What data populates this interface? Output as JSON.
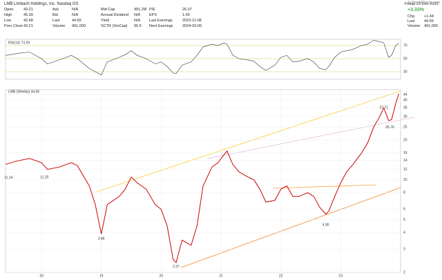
{
  "header": {
    "symbol": "LMB",
    "company": "Limbach Holdings, Inc. Nasdaq GS",
    "date": "Friday 22-Dec-2023",
    "change_pct": "+3.33%",
    "fields": [
      {
        "label": "Open",
        "value": "43.21"
      },
      {
        "label": "High",
        "value": "45.39"
      },
      {
        "label": "Low",
        "value": "42.48"
      },
      {
        "label": "Prev Close",
        "value": "43.21"
      },
      {
        "label": "Ask",
        "value": "N/A"
      },
      {
        "label": "Bid",
        "value": "N/A"
      },
      {
        "label": "Last",
        "value": "44.65"
      },
      {
        "label": "Volume",
        "value": "491,000"
      },
      {
        "label": "Mid Cap",
        "value": "491.2M"
      },
      {
        "label": "Annual Dividend",
        "value": "N/A"
      },
      {
        "label": "Yield",
        "value": "N/A"
      },
      {
        "label": "SCTR (SmCap)",
        "value": "96.5"
      },
      {
        "label": "P/E",
        "value": "26.37"
      },
      {
        "label": "EPS",
        "value": "1.69"
      },
      {
        "label": "Last Earnings",
        "value": "2023-11-08"
      },
      {
        "label": "Next Earnings",
        "value": "2024-03-06"
      }
    ],
    "quote": [
      {
        "label": "Chg",
        "value": "+1.44"
      },
      {
        "label": "Last",
        "value": "44.65"
      },
      {
        "label": "Volume",
        "value": "491,000"
      }
    ],
    "brand": "© StockCharts.com"
  },
  "chart_data": [
    {
      "type": "line",
      "label": "RSI(14) 73.59",
      "ylim": [
        20,
        80
      ],
      "yticks": [
        30,
        50,
        70
      ],
      "xlim": [
        2017.4,
        2024.0
      ],
      "x": [
        2017.4,
        2017.6,
        2017.8,
        2018.0,
        2018.1,
        2018.3,
        2018.5,
        2018.6,
        2018.8,
        2018.9,
        2019.0,
        2019.1,
        2019.3,
        2019.4,
        2019.5,
        2019.6,
        2019.75,
        2019.9,
        2020.0,
        2020.1,
        2020.2,
        2020.25,
        2020.35,
        2020.5,
        2020.6,
        2020.7,
        2020.85,
        2020.95,
        2021.05,
        2021.1,
        2021.2,
        2021.3,
        2021.45,
        2021.55,
        2021.65,
        2021.75,
        2021.9,
        2022.0,
        2022.1,
        2022.2,
        2022.3,
        2022.45,
        2022.55,
        2022.65,
        2022.75,
        2022.8,
        2022.9,
        2023.0,
        2023.1,
        2023.2,
        2023.35,
        2023.45,
        2023.55,
        2023.65,
        2023.72,
        2023.8,
        2023.85,
        2023.92,
        2023.97
      ],
      "series": [
        {
          "name": "RSI(14)",
          "color": "#333333",
          "values": [
            55,
            58,
            60,
            50,
            42,
            48,
            55,
            50,
            35,
            30,
            25,
            45,
            52,
            56,
            62,
            55,
            50,
            42,
            45,
            38,
            28,
            27,
            40,
            45,
            55,
            68,
            72,
            70,
            74,
            72,
            55,
            50,
            48,
            46,
            38,
            32,
            40,
            52,
            55,
            45,
            46,
            50,
            45,
            35,
            33,
            38,
            52,
            60,
            62,
            64,
            70,
            72,
            78,
            76,
            74,
            52,
            55,
            70,
            73.59
          ]
        }
      ]
    },
    {
      "type": "line",
      "label": "LMB (Weekly) 44.65",
      "log_scale": true,
      "ylim": [
        2,
        48
      ],
      "yticks": [
        2,
        3,
        4,
        5,
        6,
        8,
        10,
        12,
        14,
        16,
        20,
        25,
        30,
        35,
        40,
        44
      ],
      "xlim": [
        2017.4,
        2024.0
      ],
      "xticks": [
        {
          "value": 2018,
          "label": "18"
        },
        {
          "value": 2019,
          "label": "19"
        },
        {
          "value": 2020,
          "label": "20"
        },
        {
          "value": 2021,
          "label": "21"
        },
        {
          "value": 2022,
          "label": "22"
        },
        {
          "value": 2023,
          "label": "23"
        }
      ],
      "x": [
        2017.4,
        2017.6,
        2017.8,
        2018.0,
        2018.1,
        2018.3,
        2018.5,
        2018.6,
        2018.8,
        2018.9,
        2019.0,
        2019.1,
        2019.3,
        2019.4,
        2019.5,
        2019.6,
        2019.75,
        2019.9,
        2020.0,
        2020.1,
        2020.2,
        2020.25,
        2020.35,
        2020.5,
        2020.6,
        2020.7,
        2020.85,
        2020.95,
        2021.05,
        2021.1,
        2021.2,
        2021.3,
        2021.45,
        2021.55,
        2021.65,
        2021.75,
        2021.9,
        2022.0,
        2022.1,
        2022.2,
        2022.3,
        2022.45,
        2022.55,
        2022.65,
        2022.75,
        2022.8,
        2022.9,
        2023.0,
        2023.1,
        2023.2,
        2023.35,
        2023.45,
        2023.55,
        2023.65,
        2023.72,
        2023.8,
        2023.85,
        2023.92,
        2023.97
      ],
      "series": [
        {
          "name": "LMB",
          "color": "#cc0000",
          "values": [
            13.1,
            13.9,
            14.5,
            13.5,
            12.0,
            12.5,
            13.5,
            12.8,
            9,
            6.5,
            3.9,
            6.5,
            7.5,
            8.5,
            10.5,
            9.5,
            8.5,
            6.5,
            6,
            4.5,
            2.5,
            2.37,
            3.5,
            3.2,
            4.5,
            9,
            12.5,
            13.5,
            15.5,
            16.5,
            13,
            11.5,
            10.5,
            10,
            8.5,
            6.8,
            7,
            8.5,
            9,
            7.5,
            7.5,
            8,
            7.5,
            6.2,
            5.5,
            5.8,
            7.5,
            9.5,
            11.5,
            13,
            16,
            19,
            25,
            30,
            35,
            28,
            28.5,
            38,
            44.65
          ]
        }
      ],
      "annotations": [
        {
          "text": "11.14",
          "x": 2017.45,
          "y": 11.14
        },
        {
          "text": "11.25",
          "x": 2018.05,
          "y": 11.25
        },
        {
          "text": "3.86",
          "x": 2019.0,
          "y": 3.86
        },
        {
          "text": "2.37",
          "x": 2020.25,
          "y": 2.37
        },
        {
          "text": "4.90",
          "x": 2022.75,
          "y": 4.9
        },
        {
          "text": "37.71",
          "x": 2023.72,
          "y": 37.71
        },
        {
          "text": "26.76",
          "x": 2023.82,
          "y": 26.76
        }
      ]
    }
  ]
}
